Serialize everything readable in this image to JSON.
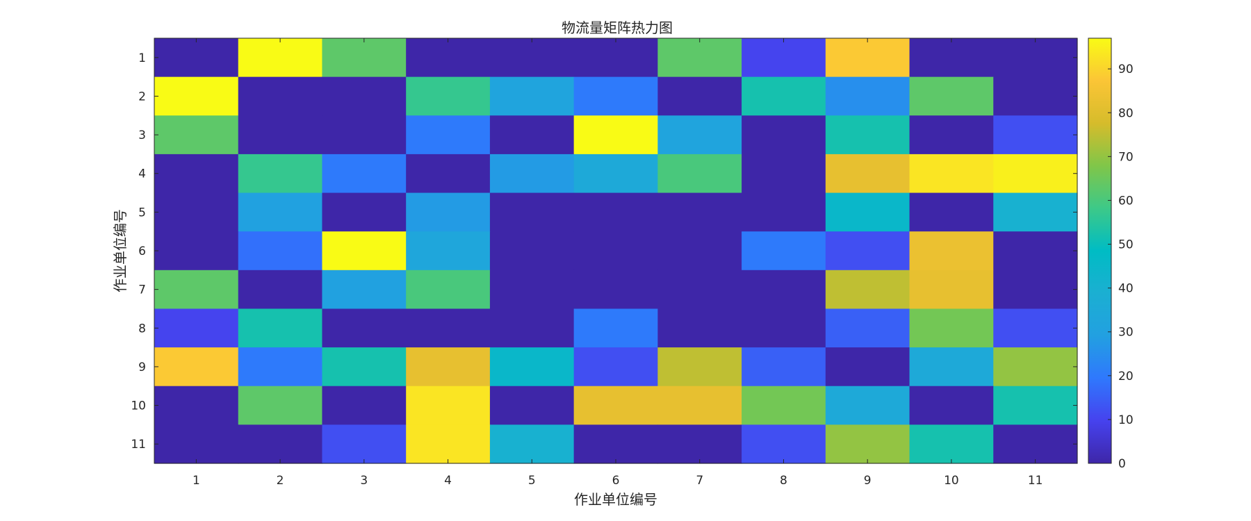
{
  "chart_data": {
    "type": "heatmap",
    "title": "物流量矩阵热力图",
    "xlabel": "作业单位编号",
    "ylabel": "作业单位编号",
    "x_categories": [
      "1",
      "2",
      "3",
      "4",
      "5",
      "6",
      "7",
      "8",
      "9",
      "10",
      "11"
    ],
    "y_categories": [
      "1",
      "2",
      "3",
      "4",
      "5",
      "6",
      "7",
      "8",
      "9",
      "10",
      "11"
    ],
    "values": [
      [
        0,
        97,
        63,
        0,
        0,
        0,
        63,
        10,
        88,
        0,
        0
      ],
      [
        97,
        0,
        0,
        57,
        32,
        20,
        0,
        52,
        25,
        63,
        0
      ],
      [
        63,
        0,
        0,
        20,
        0,
        97,
        32,
        0,
        52,
        0,
        12
      ],
      [
        0,
        57,
        20,
        0,
        28,
        35,
        60,
        0,
        82,
        93,
        95
      ],
      [
        0,
        30,
        0,
        28,
        0,
        0,
        0,
        0,
        45,
        0,
        40
      ],
      [
        0,
        18,
        97,
        33,
        0,
        0,
        0,
        20,
        12,
        83,
        0
      ],
      [
        63,
        0,
        30,
        60,
        0,
        0,
        0,
        0,
        75,
        82,
        0
      ],
      [
        10,
        52,
        0,
        0,
        0,
        20,
        0,
        0,
        15,
        66,
        12
      ],
      [
        88,
        20,
        52,
        82,
        45,
        12,
        75,
        15,
        0,
        35,
        70
      ],
      [
        0,
        63,
        0,
        93,
        0,
        82,
        82,
        66,
        35,
        0,
        52
      ],
      [
        0,
        0,
        12,
        93,
        40,
        0,
        0,
        12,
        70,
        52,
        0
      ]
    ],
    "colorbar": {
      "min": 0,
      "max": 97,
      "ticks": [
        0,
        10,
        20,
        30,
        40,
        50,
        60,
        70,
        80,
        90
      ]
    },
    "colormap": "parula",
    "grid": false
  }
}
